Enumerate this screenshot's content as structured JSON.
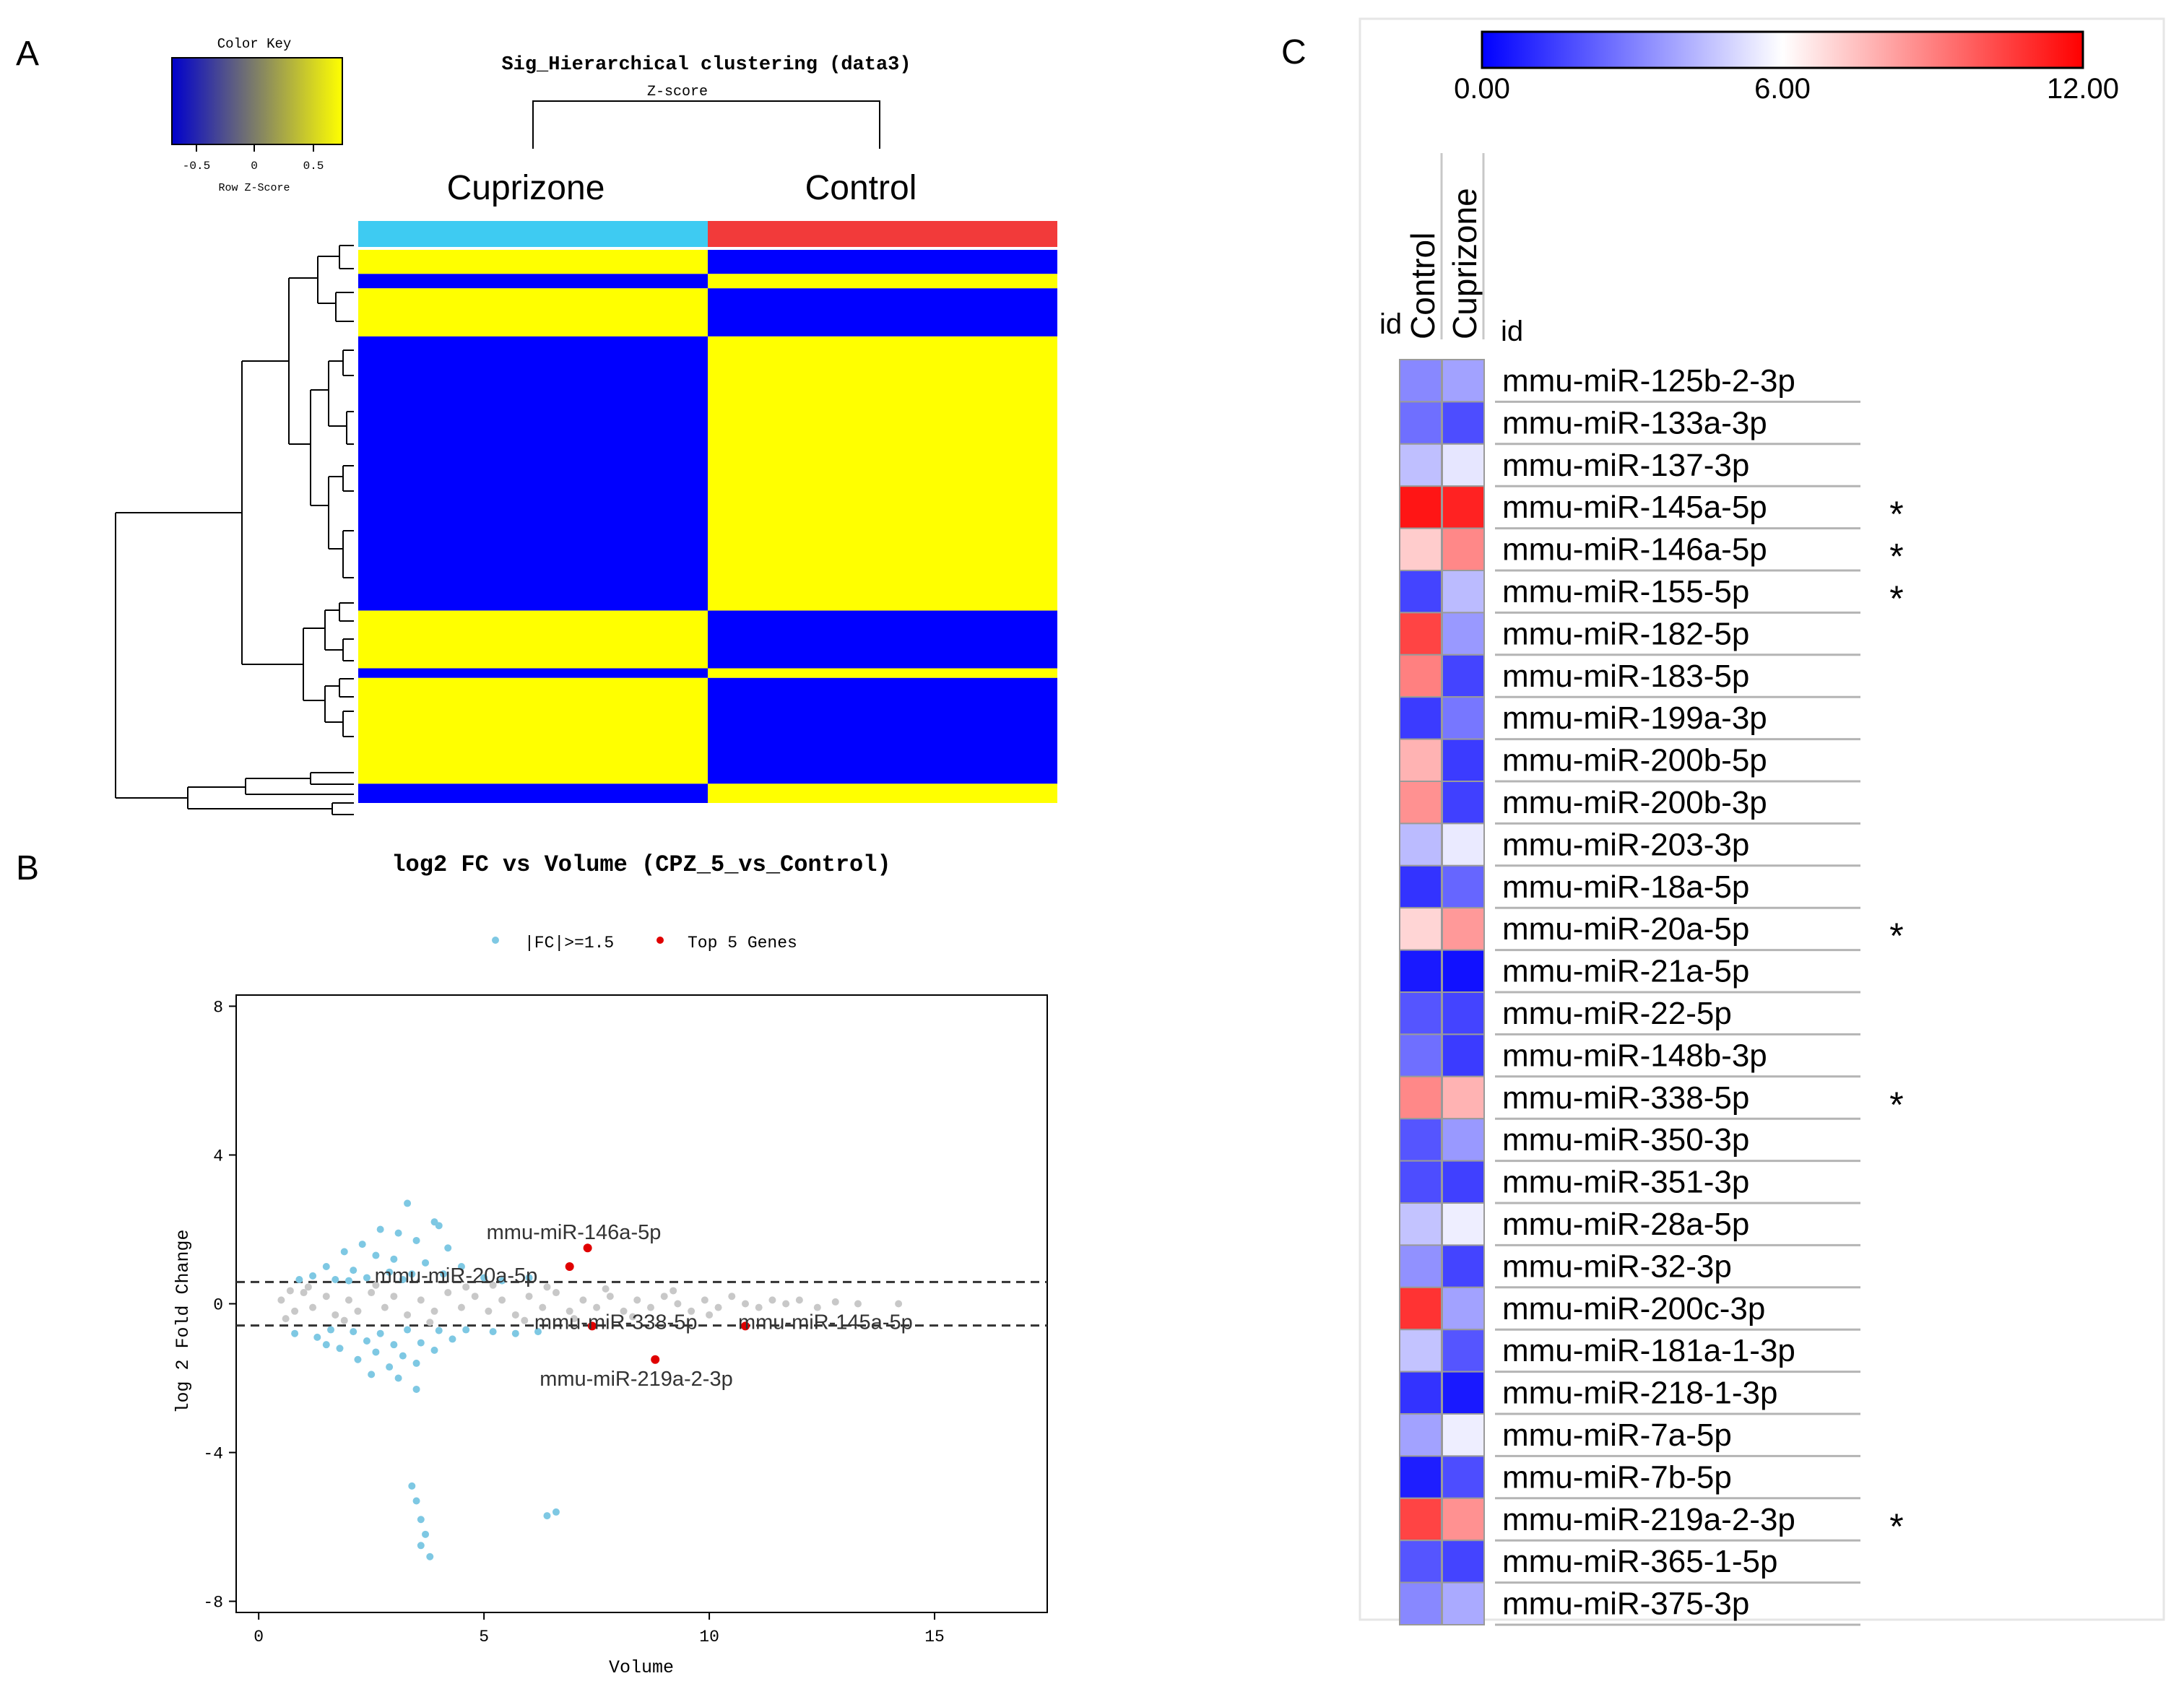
{
  "panel_labels": {
    "a": "A",
    "b": "B",
    "c": "C"
  },
  "colors": {
    "heat_low": "#0000ff",
    "heat_high": "#ffff00",
    "cuprizone_bar": "#3ecbf2",
    "control_bar": "#f23a3a",
    "fc_points": "#7ec8e3",
    "top_genes": "#e00000",
    "other_points": "#c8c8c8"
  },
  "chart_data": [
    {
      "type": "heatmap",
      "title": "Sig_Hierarchical clustering (data3)",
      "subtitle": "Z-score",
      "color_key": {
        "title": "Color Key",
        "ticks": [
          "-0.5",
          "0",
          "0.5"
        ],
        "xlabel": "Row Z-Score",
        "range": [
          -0.75,
          0.75
        ]
      },
      "columns": [
        "Cuprizone",
        "Control"
      ],
      "row_blocks": [
        {
          "rows": 5,
          "cuprizone": "high",
          "control": "low"
        },
        {
          "rows": 3,
          "cuprizone": "low",
          "control": "high"
        },
        {
          "rows": 10,
          "cuprizone": "high",
          "control": "low"
        },
        {
          "rows": 57,
          "cuprizone": "low",
          "control": "high"
        },
        {
          "rows": 12,
          "cuprizone": "high",
          "control": "low"
        },
        {
          "rows": 2,
          "cuprizone": "low",
          "control": "high"
        },
        {
          "rows": 22,
          "cuprizone": "high",
          "control": "low"
        },
        {
          "rows": 4,
          "cuprizone": "low",
          "control": "high"
        }
      ]
    },
    {
      "type": "scatter",
      "title": "log2 FC vs Volume (CPZ_5_vs_Control)",
      "xlabel": "Volume",
      "ylabel": "log 2 Fold Change",
      "xlim": [
        -0.5,
        17.5
      ],
      "ylim": [
        -8.3,
        8.3
      ],
      "xticks": [
        "0",
        "5",
        "10",
        "15"
      ],
      "yticks": [
        "8",
        "4",
        "0",
        "-4",
        "-8"
      ],
      "threshold_lines": [
        0.585,
        -0.585
      ],
      "legend": [
        {
          "label": "|FC|>=1.5",
          "color": "#7ec8e3"
        },
        {
          "label": "Top 5 Genes",
          "color": "#e00000"
        }
      ],
      "top_genes": [
        {
          "label": "mmu-miR-146a-5p",
          "x": 7.3,
          "y": 1.5
        },
        {
          "label": "mmu-miR-20a-5p",
          "x": 6.9,
          "y": 1.0
        },
        {
          "label": "mmu-miR-338-5p",
          "x": 7.4,
          "y": -0.6
        },
        {
          "label": "mmu-miR-145a-5p",
          "x": 10.8,
          "y": -0.6
        },
        {
          "label": "mmu-miR-219a-2-3p",
          "x": 8.8,
          "y": -1.5
        }
      ],
      "fc_points": [
        [
          3.3,
          2.7
        ],
        [
          3.9,
          2.2
        ],
        [
          4.0,
          2.1
        ],
        [
          2.7,
          2.0
        ],
        [
          3.1,
          1.9
        ],
        [
          3.5,
          1.7
        ],
        [
          2.3,
          1.6
        ],
        [
          4.2,
          1.5
        ],
        [
          1.9,
          1.4
        ],
        [
          2.6,
          1.3
        ],
        [
          3.0,
          1.2
        ],
        [
          3.7,
          1.1
        ],
        [
          4.5,
          1.0
        ],
        [
          1.5,
          1.0
        ],
        [
          2.1,
          0.9
        ],
        [
          2.9,
          0.85
        ],
        [
          3.4,
          0.8
        ],
        [
          4.1,
          0.8
        ],
        [
          1.2,
          0.75
        ],
        [
          2.4,
          0.7
        ],
        [
          5.0,
          0.7
        ],
        [
          1.7,
          0.65
        ],
        [
          3.2,
          0.65
        ],
        [
          2.0,
          0.62
        ],
        [
          5.4,
          0.62
        ],
        [
          0.9,
          0.65
        ],
        [
          6.0,
          0.7
        ],
        [
          1.6,
          -0.7
        ],
        [
          2.1,
          -0.75
        ],
        [
          2.7,
          -0.8
        ],
        [
          3.3,
          -0.7
        ],
        [
          4.0,
          -0.72
        ],
        [
          4.6,
          -0.7
        ],
        [
          5.2,
          -0.75
        ],
        [
          1.3,
          -0.9
        ],
        [
          2.4,
          -1.0
        ],
        [
          3.0,
          -1.1
        ],
        [
          3.6,
          -1.05
        ],
        [
          4.3,
          -0.95
        ],
        [
          1.8,
          -1.2
        ],
        [
          2.6,
          -1.3
        ],
        [
          3.2,
          -1.4
        ],
        [
          3.9,
          -1.25
        ],
        [
          2.2,
          -1.5
        ],
        [
          2.9,
          -1.7
        ],
        [
          3.5,
          -1.6
        ],
        [
          2.5,
          -1.9
        ],
        [
          3.1,
          -2.0
        ],
        [
          3.5,
          -2.3
        ],
        [
          1.5,
          -1.1
        ],
        [
          5.7,
          -0.8
        ],
        [
          6.2,
          -0.75
        ],
        [
          0.8,
          -0.8
        ],
        [
          3.4,
          -4.9
        ],
        [
          3.5,
          -5.3
        ],
        [
          3.6,
          -5.8
        ],
        [
          3.7,
          -6.2
        ],
        [
          3.6,
          -6.5
        ],
        [
          3.8,
          -6.8
        ],
        [
          6.4,
          -5.7
        ],
        [
          6.6,
          -5.6
        ]
      ],
      "other_points": [
        [
          0.5,
          0.1
        ],
        [
          0.8,
          -0.2
        ],
        [
          1.0,
          0.3
        ],
        [
          1.2,
          -0.1
        ],
        [
          1.5,
          0.2
        ],
        [
          1.7,
          -0.3
        ],
        [
          2.0,
          0.1
        ],
        [
          2.2,
          -0.2
        ],
        [
          2.5,
          0.3
        ],
        [
          2.8,
          -0.1
        ],
        [
          3.0,
          0.2
        ],
        [
          3.3,
          -0.3
        ],
        [
          3.6,
          0.1
        ],
        [
          3.9,
          -0.2
        ],
        [
          4.2,
          0.3
        ],
        [
          4.5,
          -0.1
        ],
        [
          4.8,
          0.2
        ],
        [
          5.1,
          -0.2
        ],
        [
          5.4,
          0.1
        ],
        [
          5.7,
          -0.3
        ],
        [
          6.0,
          0.2
        ],
        [
          6.3,
          -0.1
        ],
        [
          6.6,
          0.3
        ],
        [
          6.9,
          -0.2
        ],
        [
          7.2,
          0.1
        ],
        [
          7.5,
          -0.1
        ],
        [
          7.8,
          0.2
        ],
        [
          8.1,
          -0.2
        ],
        [
          8.4,
          0.1
        ],
        [
          8.7,
          -0.1
        ],
        [
          9.0,
          0.2
        ],
        [
          9.3,
          0.0
        ],
        [
          9.6,
          -0.2
        ],
        [
          9.9,
          0.1
        ],
        [
          10.2,
          -0.1
        ],
        [
          10.5,
          0.2
        ],
        [
          10.8,
          0.0
        ],
        [
          11.1,
          -0.1
        ],
        [
          11.4,
          0.1
        ],
        [
          11.7,
          0.0
        ],
        [
          12.0,
          0.1
        ],
        [
          12.4,
          -0.1
        ],
        [
          12.8,
          0.05
        ],
        [
          13.3,
          0.0
        ],
        [
          14.2,
          0.0
        ],
        [
          1.1,
          0.45
        ],
        [
          1.9,
          -0.45
        ],
        [
          2.6,
          0.5
        ],
        [
          3.8,
          -0.5
        ],
        [
          4.6,
          0.45
        ],
        [
          5.2,
          0.5
        ],
        [
          5.9,
          -0.45
        ],
        [
          6.4,
          0.45
        ],
        [
          7.0,
          -0.4
        ],
        [
          7.7,
          0.4
        ],
        [
          8.3,
          -0.35
        ],
        [
          9.2,
          0.35
        ],
        [
          10.0,
          -0.3
        ],
        [
          0.7,
          0.35
        ],
        [
          0.6,
          -0.4
        ]
      ]
    },
    {
      "type": "heatmap",
      "scale": {
        "min_label": "0.00",
        "mid_label": "6.00",
        "max_label": "12.00",
        "min": 0,
        "mid": 6,
        "max": 12
      },
      "column_header_left": "id",
      "columns": [
        "Control",
        "Cuprizone"
      ],
      "row_header": "id",
      "rows": [
        {
          "id": "mmu-miR-125b-2-3p",
          "control": 3.2,
          "cuprizone": 3.8,
          "sig": ""
        },
        {
          "id": "mmu-miR-133a-3p",
          "control": 2.6,
          "cuprizone": 1.8,
          "sig": ""
        },
        {
          "id": "mmu-miR-137-3p",
          "control": 4.5,
          "cuprizone": 5.4,
          "sig": ""
        },
        {
          "id": "mmu-miR-145a-5p",
          "control": 11.5,
          "cuprizone": 11.2,
          "sig": "*"
        },
        {
          "id": "mmu-miR-146a-5p",
          "control": 7.2,
          "cuprizone": 8.8,
          "sig": "*"
        },
        {
          "id": "mmu-miR-155-5p",
          "control": 1.6,
          "cuprizone": 4.4,
          "sig": "*"
        },
        {
          "id": "mmu-miR-182-5p",
          "control": 10.4,
          "cuprizone": 3.6,
          "sig": ""
        },
        {
          "id": "mmu-miR-183-5p",
          "control": 9.0,
          "cuprizone": 1.6,
          "sig": ""
        },
        {
          "id": "mmu-miR-199a-3p",
          "control": 1.4,
          "cuprizone": 2.8,
          "sig": ""
        },
        {
          "id": "mmu-miR-200b-5p",
          "control": 7.8,
          "cuprizone": 1.4,
          "sig": ""
        },
        {
          "id": "mmu-miR-200b-3p",
          "control": 8.6,
          "cuprizone": 1.5,
          "sig": ""
        },
        {
          "id": "mmu-miR-203-3p",
          "control": 4.4,
          "cuprizone": 5.5,
          "sig": ""
        },
        {
          "id": "mmu-miR-18a-5p",
          "control": 1.2,
          "cuprizone": 2.4,
          "sig": ""
        },
        {
          "id": "mmu-miR-20a-5p",
          "control": 7.0,
          "cuprizone": 8.4,
          "sig": "*"
        },
        {
          "id": "mmu-miR-21a-5p",
          "control": 0.6,
          "cuprizone": 0.4,
          "sig": ""
        },
        {
          "id": "mmu-miR-22-5p",
          "control": 2.0,
          "cuprizone": 1.6,
          "sig": ""
        },
        {
          "id": "mmu-miR-148b-3p",
          "control": 2.6,
          "cuprizone": 1.4,
          "sig": ""
        },
        {
          "id": "mmu-miR-338-5p",
          "control": 8.8,
          "cuprizone": 7.8,
          "sig": "*"
        },
        {
          "id": "mmu-miR-350-3p",
          "control": 2.0,
          "cuprizone": 3.6,
          "sig": ""
        },
        {
          "id": "mmu-miR-351-3p",
          "control": 1.8,
          "cuprizone": 1.5,
          "sig": ""
        },
        {
          "id": "mmu-miR-28a-5p",
          "control": 4.6,
          "cuprizone": 5.6,
          "sig": ""
        },
        {
          "id": "mmu-miR-32-3p",
          "control": 3.4,
          "cuprizone": 1.6,
          "sig": ""
        },
        {
          "id": "mmu-miR-200c-3p",
          "control": 10.8,
          "cuprizone": 3.8,
          "sig": ""
        },
        {
          "id": "mmu-miR-181a-1-3p",
          "control": 4.6,
          "cuprizone": 2.0,
          "sig": ""
        },
        {
          "id": "mmu-miR-218-1-3p",
          "control": 1.2,
          "cuprizone": 0.6,
          "sig": ""
        },
        {
          "id": "mmu-miR-7a-5p",
          "control": 3.8,
          "cuprizone": 5.6,
          "sig": ""
        },
        {
          "id": "mmu-miR-7b-5p",
          "control": 0.7,
          "cuprizone": 1.8,
          "sig": ""
        },
        {
          "id": "mmu-miR-219a-2-3p",
          "control": 10.4,
          "cuprizone": 8.6,
          "sig": "*"
        },
        {
          "id": "mmu-miR-365-1-5p",
          "control": 2.0,
          "cuprizone": 1.6,
          "sig": ""
        },
        {
          "id": "mmu-miR-375-3p",
          "control": 3.2,
          "cuprizone": 4.0,
          "sig": ""
        }
      ]
    }
  ]
}
